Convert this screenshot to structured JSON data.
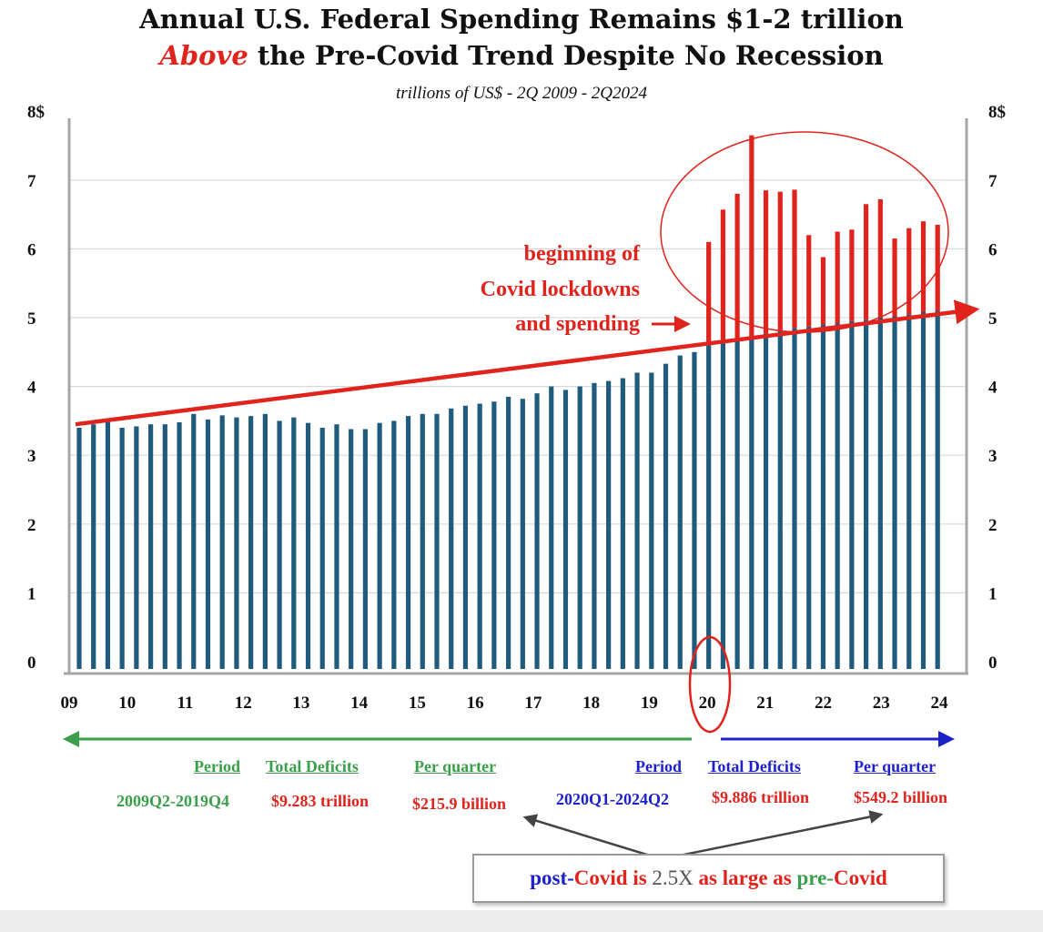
{
  "chart_data": {
    "type": "bar",
    "title_line1": "Annual U.S. Federal Spending Remains $1-2 trillion",
    "title_line2_emphasis": "Above",
    "title_line2_rest": " the Pre-Covid Trend Despite No Recession",
    "subtitle": "trillions of US$ - 2Q 2009 - 2Q2024",
    "ylim": [
      0,
      8
    ],
    "y_ticks": [
      "0",
      "1",
      "2",
      "3",
      "4",
      "5",
      "6",
      "7",
      "8$"
    ],
    "x_ticks": [
      "09",
      "10",
      "11",
      "12",
      "13",
      "14",
      "15",
      "16",
      "17",
      "18",
      "19",
      "20",
      "21",
      "22",
      "23",
      "24"
    ],
    "grid": true,
    "series": [
      {
        "values": [
          3.4,
          3.45,
          3.5,
          3.4,
          3.42,
          3.45,
          3.45,
          3.48,
          3.6,
          3.52,
          3.58,
          3.55,
          3.57,
          3.6,
          3.5,
          3.55,
          3.47,
          3.4,
          3.45,
          3.38,
          3.38,
          3.47,
          3.5,
          3.57,
          3.6,
          3.6,
          3.68,
          3.72,
          3.75,
          3.78,
          3.85,
          3.82,
          3.9,
          4.0,
          3.95,
          4.0,
          4.05,
          4.08,
          4.12,
          4.2,
          4.2,
          4.33,
          4.45,
          4.5,
          4.6,
          4.65,
          4.7,
          4.73,
          4.77,
          4.82,
          4.85,
          4.87,
          4.9,
          4.92,
          4.95,
          4.97,
          5.0,
          5.02,
          5.05,
          5.08,
          5.1
        ]
      },
      {
        "values": [
          6.1,
          6.57,
          6.8,
          7.65,
          6.85,
          6.83,
          6.86,
          6.2,
          5.88,
          6.25,
          6.28,
          6.65,
          6.72,
          6.15,
          6.3,
          6.4,
          6.35
        ]
      }
    ],
    "trend_line": {
      "x": [
        0,
        61
      ],
      "y": [
        3.45,
        5.12
      ]
    },
    "annotation": {
      "lines": [
        "beginning of",
        "Covid lockdowns",
        "and spending"
      ]
    }
  },
  "table": {
    "pre": {
      "headers": [
        "Period",
        "Total Deficits",
        "Per quarter"
      ],
      "period": "2009Q2-2019Q4",
      "total": "$9.283 trillion",
      "per_quarter": "$215.9 billion"
    },
    "post": {
      "headers": [
        "Period",
        "Total Deficits",
        "Per quarter"
      ],
      "period": "2020Q1-2024Q2",
      "total": "$9.886 trillion",
      "per_quarter": "$549.2 billion"
    }
  },
  "callout": {
    "post": "post-",
    "covid1": "Covid is ",
    "mult": "2.5X",
    "mid": " as large as ",
    "pre": "pre-",
    "covid2": "Covid"
  },
  "colors": {
    "bar": "#1f5b7d",
    "covid_bar": "#e0231c",
    "trend": "#e0231c",
    "pre_period": "#3a9e4a",
    "post_period": "#1d22c8",
    "grid": "#d9d9d9",
    "axis": "#a6a6a6"
  }
}
